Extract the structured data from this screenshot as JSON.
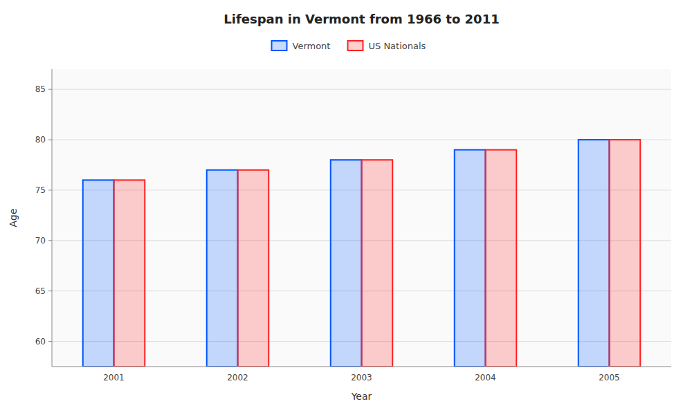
{
  "chart_data": {
    "type": "bar",
    "title": "Lifespan in Vermont from 1966 to 2011",
    "x_label": "Year",
    "y_label": "Age",
    "categories": [
      "2001",
      "2002",
      "2003",
      "2004",
      "2005"
    ],
    "series": [
      {
        "name": "Vermont",
        "color": "#0055ff",
        "values": [
          76,
          77,
          78,
          79,
          80
        ]
      },
      {
        "name": "US Nationals",
        "color": "#ff2020",
        "values": [
          76,
          77,
          78,
          79,
          80
        ]
      }
    ],
    "ylim": [
      57.5,
      87
    ],
    "yticks": [
      60,
      65,
      70,
      75,
      80,
      85
    ],
    "grid": true,
    "legend": "top"
  }
}
